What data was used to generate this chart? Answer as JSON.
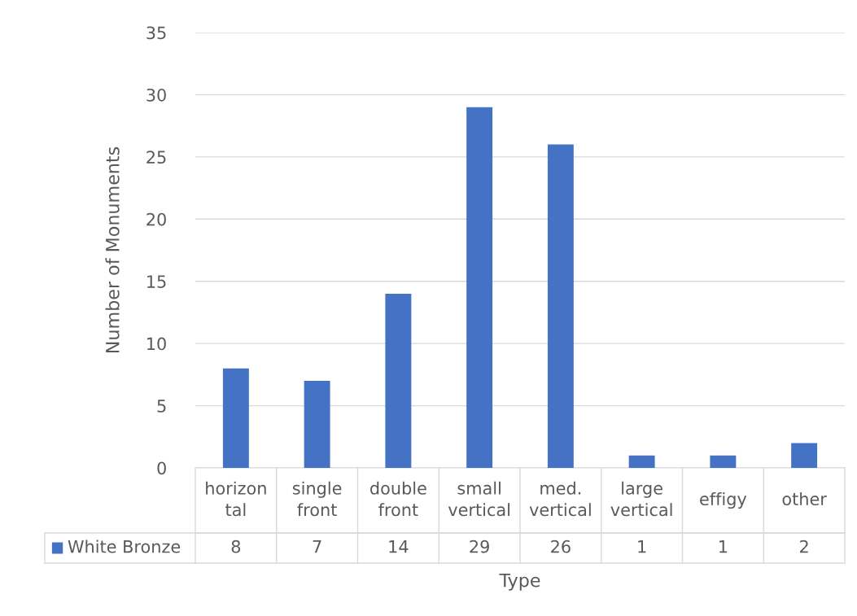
{
  "chart_data": {
    "type": "bar",
    "xlabel": "Type",
    "ylabel": "Number of Monuments",
    "categories": [
      "horizon tal",
      "single front",
      "double front",
      "small vertical",
      "med. vertical",
      "large vertical",
      "effigy",
      "other"
    ],
    "series": [
      {
        "name": "White Bronze",
        "color": "#4472c4",
        "values": [
          8,
          7,
          14,
          29,
          26,
          1,
          1,
          2
        ]
      }
    ],
    "ylim": [
      0,
      35
    ],
    "yticks": [
      0,
      5,
      10,
      15,
      20,
      25,
      30,
      35
    ],
    "grid": "y",
    "data_labels": true,
    "legend": "bottom"
  }
}
